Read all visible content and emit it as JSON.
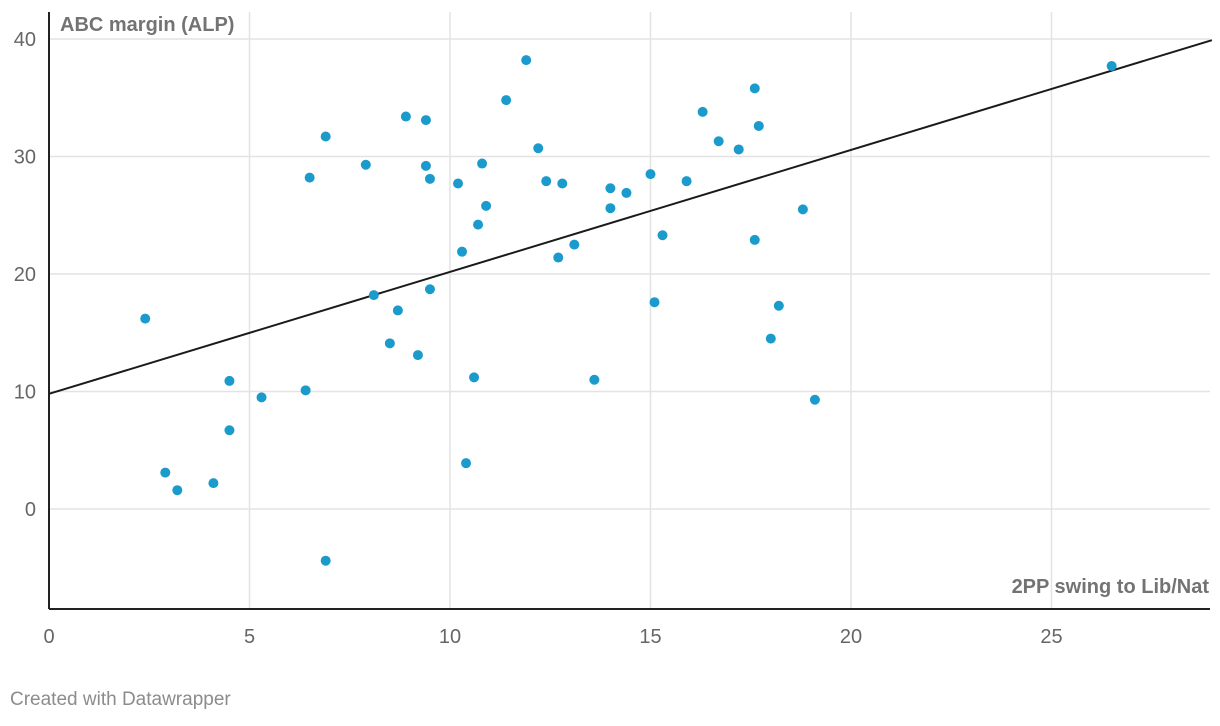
{
  "chart_data": {
    "type": "scatter",
    "ylabel": "ABC margin (ALP)",
    "xlabel": "2PP swing to Lib/Nat",
    "xlim": [
      0,
      29
    ],
    "ylim": [
      -8.5,
      42.5
    ],
    "x_ticks": [
      0,
      5,
      10,
      15,
      20,
      25
    ],
    "y_ticks": [
      0,
      10,
      20,
      30,
      40
    ],
    "grid": true,
    "colors": {
      "points": "#1a9bcc",
      "trend_line": "#1a1a1a"
    },
    "trend_line": {
      "x": [
        0,
        29
      ],
      "y": [
        9.8,
        39.9
      ]
    },
    "points": [
      {
        "x": 2.4,
        "y": 16.2
      },
      {
        "x": 2.9,
        "y": 3.1
      },
      {
        "x": 3.2,
        "y": 1.6
      },
      {
        "x": 4.1,
        "y": 2.2
      },
      {
        "x": 4.5,
        "y": 10.9
      },
      {
        "x": 4.5,
        "y": 6.7
      },
      {
        "x": 5.3,
        "y": 9.5
      },
      {
        "x": 6.4,
        "y": 10.1
      },
      {
        "x": 6.5,
        "y": 28.2
      },
      {
        "x": 6.9,
        "y": 31.7
      },
      {
        "x": 6.9,
        "y": -4.4
      },
      {
        "x": 7.9,
        "y": 29.3
      },
      {
        "x": 8.1,
        "y": 18.2
      },
      {
        "x": 8.5,
        "y": 14.1
      },
      {
        "x": 8.7,
        "y": 16.9
      },
      {
        "x": 8.9,
        "y": 33.4
      },
      {
        "x": 9.2,
        "y": 13.1
      },
      {
        "x": 9.4,
        "y": 33.1
      },
      {
        "x": 9.4,
        "y": 29.2
      },
      {
        "x": 9.5,
        "y": 28.1
      },
      {
        "x": 9.5,
        "y": 18.7
      },
      {
        "x": 10.2,
        "y": 27.7
      },
      {
        "x": 10.3,
        "y": 21.9
      },
      {
        "x": 10.4,
        "y": 3.9
      },
      {
        "x": 10.6,
        "y": 11.2
      },
      {
        "x": 10.7,
        "y": 24.2
      },
      {
        "x": 10.8,
        "y": 29.4
      },
      {
        "x": 10.9,
        "y": 25.8
      },
      {
        "x": 11.4,
        "y": 34.8
      },
      {
        "x": 11.9,
        "y": 38.2
      },
      {
        "x": 12.2,
        "y": 30.7
      },
      {
        "x": 12.4,
        "y": 27.9
      },
      {
        "x": 12.7,
        "y": 21.4
      },
      {
        "x": 12.8,
        "y": 27.7
      },
      {
        "x": 13.1,
        "y": 22.5
      },
      {
        "x": 13.6,
        "y": 11.0
      },
      {
        "x": 14.0,
        "y": 27.3
      },
      {
        "x": 14.0,
        "y": 25.6
      },
      {
        "x": 14.4,
        "y": 26.9
      },
      {
        "x": 15.0,
        "y": 28.5
      },
      {
        "x": 15.1,
        "y": 17.6
      },
      {
        "x": 15.3,
        "y": 23.3
      },
      {
        "x": 15.9,
        "y": 27.9
      },
      {
        "x": 16.3,
        "y": 33.8
      },
      {
        "x": 16.7,
        "y": 31.3
      },
      {
        "x": 17.2,
        "y": 30.6
      },
      {
        "x": 17.6,
        "y": 35.8
      },
      {
        "x": 17.6,
        "y": 22.9
      },
      {
        "x": 17.7,
        "y": 32.6
      },
      {
        "x": 18.0,
        "y": 14.5
      },
      {
        "x": 18.2,
        "y": 17.3
      },
      {
        "x": 18.8,
        "y": 25.5
      },
      {
        "x": 19.1,
        "y": 9.3
      },
      {
        "x": 26.5,
        "y": 37.7
      }
    ]
  },
  "footer": {
    "credit": "Created with Datawrapper"
  }
}
